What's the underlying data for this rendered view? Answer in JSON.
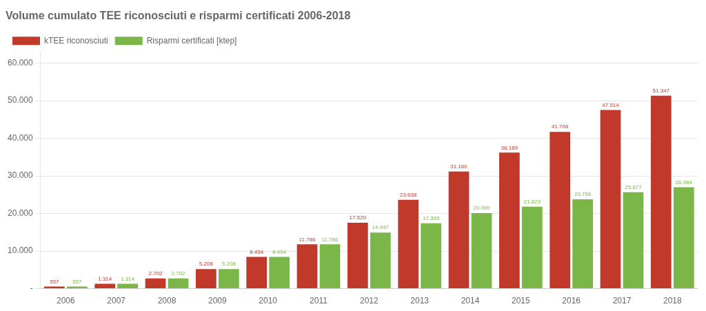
{
  "chart_data": {
    "type": "bar",
    "title": "Volume cumulato TEE riconosciuti e risparmi certificati 2006-2018",
    "categories": [
      "2006",
      "2007",
      "2008",
      "2009",
      "2010",
      "2011",
      "2012",
      "2013",
      "2014",
      "2015",
      "2016",
      "2017",
      "2018"
    ],
    "series": [
      {
        "name": "kTEE riconosciuti",
        "color": "#c0392b",
        "values": [
          557,
          1314,
          2702,
          5208,
          8454,
          11786,
          17520,
          23638,
          31160,
          36189,
          41706,
          47514,
          51347
        ],
        "value_labels": [
          "557",
          "1.314",
          "2.702",
          "5.208",
          "8.454",
          "11.786",
          "17.520",
          "23.638",
          "31.160",
          "36.189",
          "41.706",
          "47.514",
          "51.347"
        ]
      },
      {
        "name": "Risparmi certificati [ktep]",
        "color": "#7ab648",
        "values": [
          557,
          1314,
          2702,
          5208,
          8454,
          11786,
          14947,
          17395,
          20090,
          21823,
          23756,
          25677,
          26984
        ],
        "value_labels": [
          "557",
          "1.314",
          "2.702",
          "5.208",
          "8.454",
          "11.786",
          "14.947",
          "17.395",
          "20.090",
          "21.823",
          "23.756",
          "25.677",
          "26.984"
        ]
      }
    ],
    "ylim": [
      0,
      63000
    ],
    "yticks": [
      {
        "value": 0,
        "label": "-"
      },
      {
        "value": 10000,
        "label": "10.000"
      },
      {
        "value": 20000,
        "label": "20.000"
      },
      {
        "value": 30000,
        "label": "30.000"
      },
      {
        "value": 40000,
        "label": "40.000"
      },
      {
        "value": 50000,
        "label": "50.000"
      },
      {
        "value": 60000,
        "label": "60.000"
      }
    ],
    "grid": true,
    "legend": "upper left",
    "data_labels": true
  }
}
